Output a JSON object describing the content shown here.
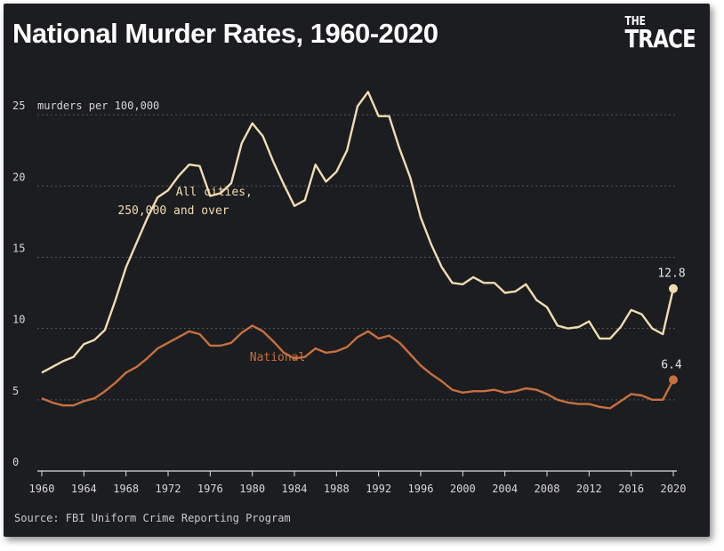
{
  "title": "National Murder Rates, 1960-2020",
  "logo": {
    "the": "THE",
    "trace": "TRACE"
  },
  "source": "Source: FBI Uniform Crime Reporting Program",
  "colors": {
    "background": "#1c1d20",
    "cities": "#f1dcb0",
    "national": "#c8703e",
    "grid": "#55575c"
  },
  "chart_data": {
    "type": "line",
    "title": "National Murder Rates, 1960-2020",
    "ylabel": "murders per 100,000",
    "xlabel": "",
    "xlim": [
      1960,
      2020
    ],
    "ylim": [
      0,
      27
    ],
    "yticks": [
      0,
      5,
      10,
      15,
      20,
      25
    ],
    "xticks": [
      1960,
      1964,
      1968,
      1972,
      1976,
      1980,
      1984,
      1988,
      1992,
      1996,
      2000,
      2004,
      2008,
      2012,
      2016,
      2020
    ],
    "grid": true,
    "x": [
      1960,
      1961,
      1962,
      1963,
      1964,
      1965,
      1966,
      1967,
      1968,
      1969,
      1970,
      1971,
      1972,
      1973,
      1974,
      1975,
      1976,
      1977,
      1978,
      1979,
      1980,
      1981,
      1982,
      1983,
      1984,
      1985,
      1986,
      1987,
      1988,
      1989,
      1990,
      1991,
      1992,
      1993,
      1994,
      1995,
      1996,
      1997,
      1998,
      1999,
      2000,
      2001,
      2002,
      2003,
      2004,
      2005,
      2006,
      2007,
      2008,
      2009,
      2010,
      2011,
      2012,
      2013,
      2014,
      2015,
      2016,
      2017,
      2018,
      2019,
      2020
    ],
    "series": [
      {
        "name": "All cities, 250,000 and over",
        "label_lines": [
          "All cities,",
          "250,000 and over"
        ],
        "values": [
          6.9,
          7.3,
          7.7,
          8.0,
          8.9,
          9.2,
          9.9,
          12.0,
          14.3,
          16.0,
          17.7,
          19.2,
          19.7,
          20.7,
          21.5,
          21.4,
          19.3,
          19.5,
          20.2,
          23.0,
          24.4,
          23.5,
          21.7,
          20.1,
          18.6,
          19.0,
          21.5,
          20.3,
          21.0,
          22.5,
          25.6,
          26.6,
          24.9,
          24.9,
          22.6,
          20.6,
          17.8,
          15.9,
          14.3,
          13.2,
          13.1,
          13.6,
          13.2,
          13.2,
          12.5,
          12.6,
          13.1,
          12.0,
          11.5,
          10.2,
          10.0,
          10.1,
          10.5,
          9.3,
          9.3,
          10.1,
          11.3,
          11.0,
          10.0,
          9.6,
          12.8
        ],
        "end_label": "12.8"
      },
      {
        "name": "National",
        "label_lines": [
          "National"
        ],
        "values": [
          5.1,
          4.8,
          4.6,
          4.6,
          4.9,
          5.1,
          5.6,
          6.2,
          6.9,
          7.3,
          7.9,
          8.6,
          9.0,
          9.4,
          9.8,
          9.6,
          8.8,
          8.8,
          9.0,
          9.7,
          10.2,
          9.8,
          9.1,
          8.3,
          7.9,
          8.0,
          8.6,
          8.3,
          8.4,
          8.7,
          9.4,
          9.8,
          9.3,
          9.5,
          9.0,
          8.2,
          7.4,
          6.8,
          6.3,
          5.7,
          5.5,
          5.6,
          5.6,
          5.7,
          5.5,
          5.6,
          5.8,
          5.7,
          5.4,
          5.0,
          4.8,
          4.7,
          4.7,
          4.5,
          4.4,
          4.9,
          5.4,
          5.3,
          5.0,
          5.0,
          6.4
        ],
        "end_label": "6.4"
      }
    ]
  }
}
